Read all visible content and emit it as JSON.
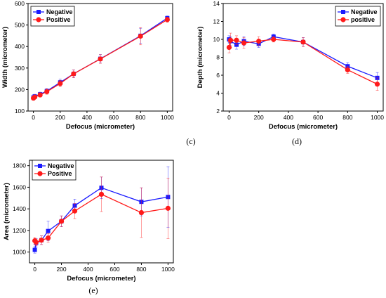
{
  "chart_data": [
    {
      "type": "line",
      "panel_label": "(c)",
      "xlabel": "Defocus (micrometer)",
      "ylabel": "Width (micrometer)",
      "xlim": [
        -40,
        1040
      ],
      "ylim": [
        100,
        600
      ],
      "xticks": [
        0,
        200,
        400,
        600,
        800,
        1000
      ],
      "yticks": [
        100,
        200,
        300,
        400,
        500,
        600
      ],
      "legend_position": "top-left",
      "series": [
        {
          "name": "Negative",
          "color": "#1a1aff",
          "marker": "square",
          "x": [
            0,
            10,
            50,
            100,
            200,
            300,
            500,
            800,
            1000
          ],
          "y": [
            163,
            168,
            178,
            193,
            233,
            273,
            343,
            450,
            532
          ],
          "err": [
            12,
            10,
            10,
            12,
            15,
            18,
            20,
            35,
            10
          ]
        },
        {
          "name": "Positive",
          "color": "#ff1a1a",
          "marker": "circle",
          "x": [
            0,
            10,
            50,
            100,
            200,
            300,
            500,
            800,
            1000
          ],
          "y": [
            160,
            165,
            175,
            190,
            228,
            273,
            342,
            448,
            525
          ],
          "err": [
            10,
            8,
            10,
            12,
            15,
            18,
            20,
            40,
            12
          ]
        }
      ]
    },
    {
      "type": "line",
      "panel_label": "(d)",
      "xlabel": "Defocus (micrometer)",
      "ylabel": "Depth (micrometer)",
      "xlim": [
        -40,
        1040
      ],
      "ylim": [
        2,
        14
      ],
      "xticks": [
        0,
        200,
        400,
        600,
        800,
        1000
      ],
      "yticks": [
        2,
        4,
        6,
        8,
        10,
        12,
        14
      ],
      "legend_position": "top-right",
      "series": [
        {
          "name": "Negative",
          "color": "#1a1aff",
          "marker": "square",
          "x": [
            0,
            10,
            50,
            100,
            200,
            300,
            500,
            800,
            1000
          ],
          "y": [
            10.0,
            9.8,
            9.4,
            9.8,
            9.5,
            10.3,
            9.7,
            7.0,
            5.7
          ],
          "err": [
            0.4,
            0.5,
            0.5,
            0.5,
            0.4,
            0.3,
            0.5,
            0.4,
            0.6
          ]
        },
        {
          "name": "positive",
          "color": "#ff1a1a",
          "marker": "circle",
          "x": [
            0,
            10,
            50,
            100,
            200,
            300,
            500,
            800,
            1000
          ],
          "y": [
            9.1,
            9.9,
            9.9,
            9.6,
            9.8,
            10.0,
            9.7,
            6.6,
            5.0
          ],
          "err": [
            0.6,
            0.8,
            0.5,
            0.6,
            0.5,
            0.3,
            0.5,
            0.4,
            0.7
          ]
        }
      ]
    },
    {
      "type": "line",
      "panel_label": "(e)",
      "xlabel": "Defocus (micrometer)",
      "ylabel": "Area (micrometer)",
      "xlim": [
        -40,
        1040
      ],
      "ylim": [
        900,
        1850
      ],
      "xticks": [
        0,
        200,
        400,
        600,
        800,
        1000
      ],
      "yticks": [
        1000,
        1200,
        1400,
        1600,
        1800
      ],
      "legend_position": "top-left",
      "series": [
        {
          "name": "Negative",
          "color": "#1a1aff",
          "marker": "square",
          "x": [
            0,
            10,
            50,
            100,
            200,
            300,
            500,
            800,
            1000
          ],
          "y": [
            1020,
            1085,
            1110,
            1195,
            1285,
            1430,
            1595,
            1465,
            1510
          ],
          "err": [
            30,
            40,
            40,
            90,
            50,
            60,
            100,
            130,
            280
          ]
        },
        {
          "name": "Positive",
          "color": "#ff1a1a",
          "marker": "circle",
          "x": [
            0,
            10,
            50,
            100,
            200,
            300,
            500,
            800,
            1000
          ],
          "y": [
            1105,
            1090,
            1110,
            1130,
            1285,
            1380,
            1535,
            1365,
            1405
          ],
          "err": [
            30,
            30,
            40,
            40,
            50,
            70,
            160,
            230,
            280
          ]
        }
      ]
    }
  ]
}
